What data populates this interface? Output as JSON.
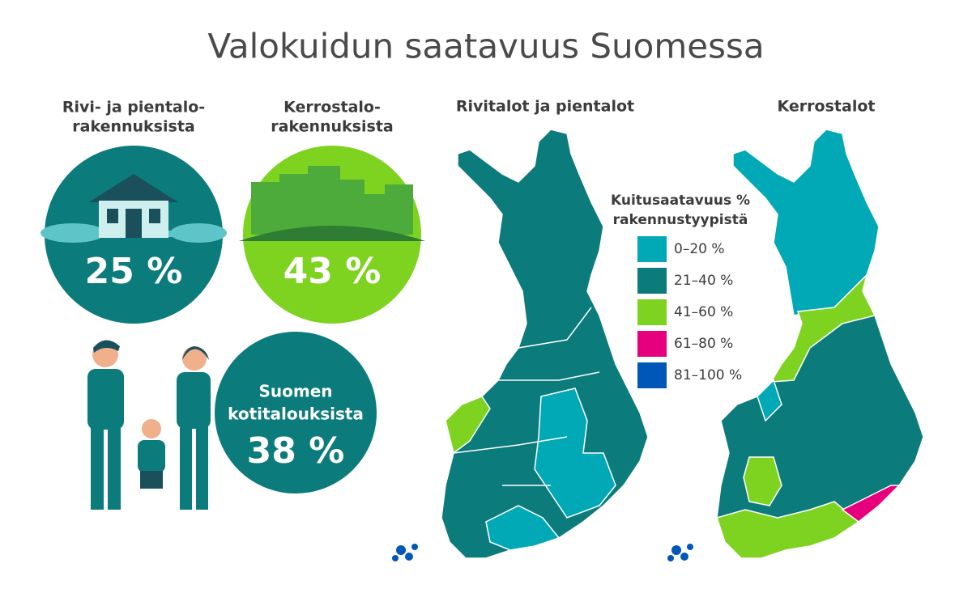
{
  "title": "Valokuidun saatavuus Suomessa",
  "stats": [
    {
      "label": [
        "Rivi- ja pientalo-",
        "rakennuksista"
      ],
      "value": "25 %"
    },
    {
      "label": [
        "Kerrostalo-",
        "rakennuksista"
      ],
      "value": "43 %"
    },
    {
      "label": [
        "Suomen",
        "kotitalouksista"
      ],
      "value": "38 %"
    }
  ],
  "maps": [
    {
      "title": "Rivitalot ja pientalot"
    },
    {
      "title": "Kerrostalot"
    }
  ],
  "legend": {
    "title": [
      "Kuitusaatavuus %",
      "rakennustyypistä"
    ],
    "items": [
      {
        "label": "0–20 %",
        "color": "#00a9b5"
      },
      {
        "label": "21–40 %",
        "color": "#0b7b7b"
      },
      {
        "label": "41–60 %",
        "color": "#7ed321"
      },
      {
        "label": "61–80 %",
        "color": "#e6007e"
      },
      {
        "label": "81–100 %",
        "color": "#0057b8"
      }
    ]
  }
}
